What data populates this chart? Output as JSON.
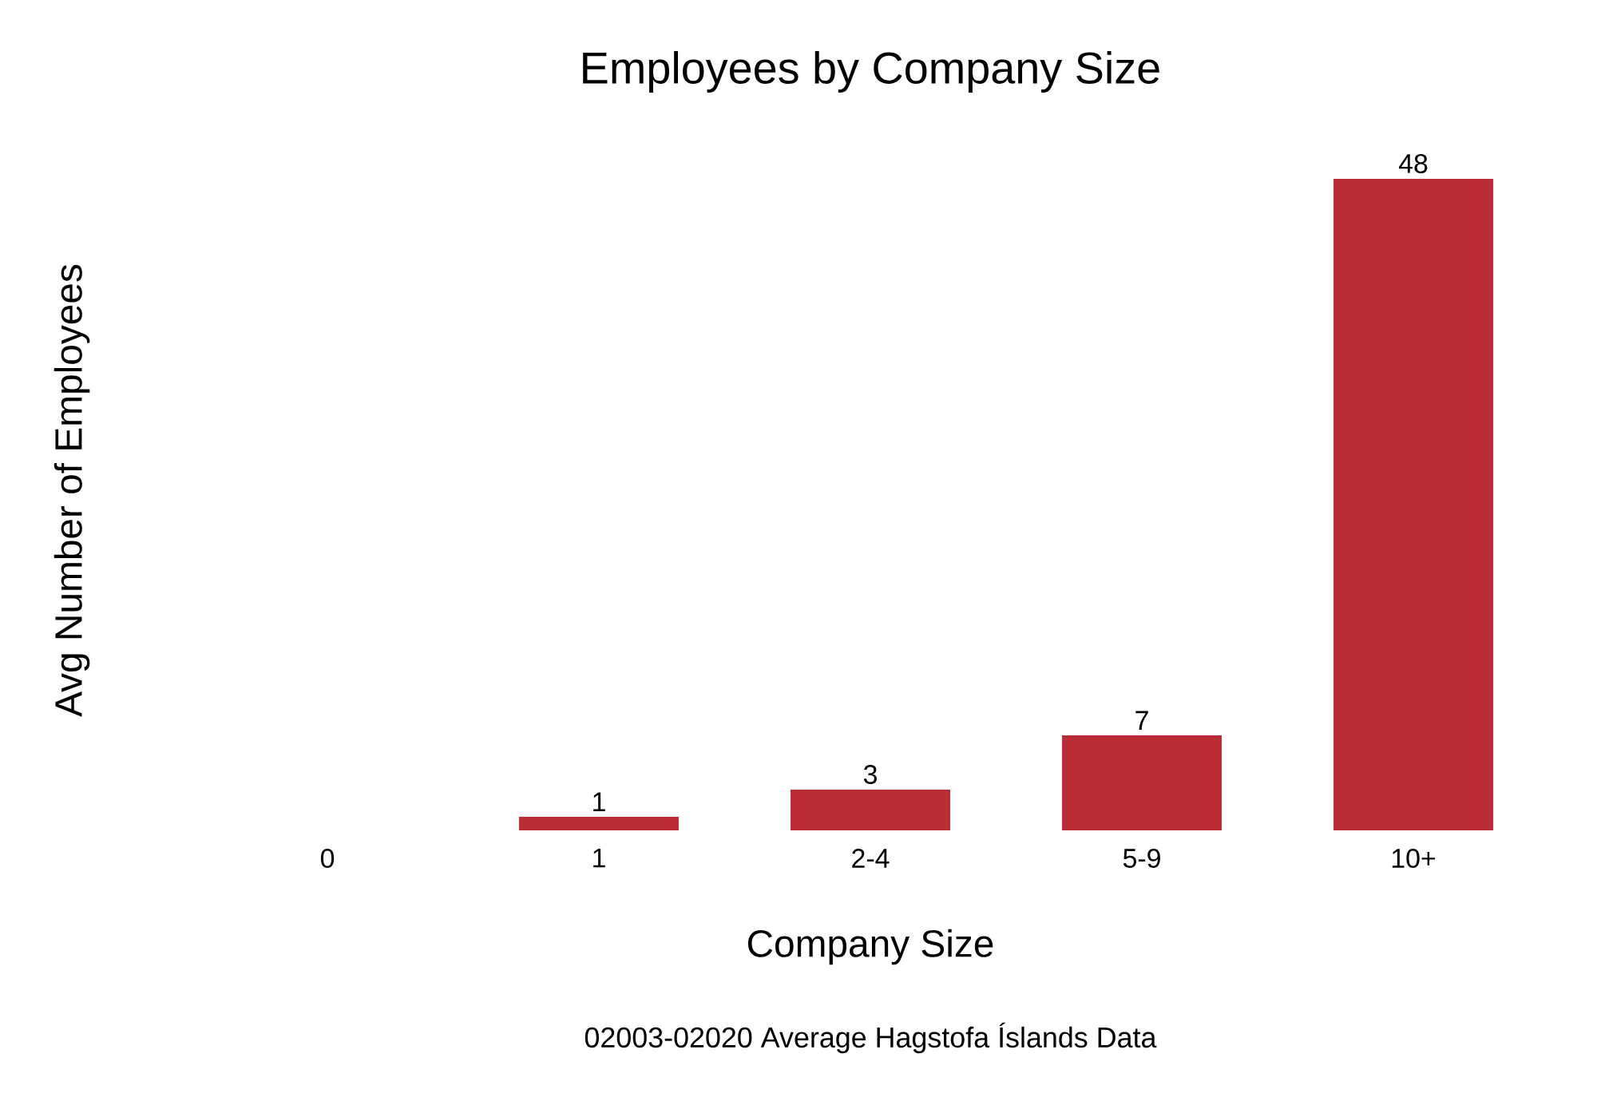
{
  "chart_data": {
    "type": "bar",
    "title": "Employees by Company Size",
    "xlabel": "Company Size",
    "ylabel": "Avg Number of Employees",
    "categories": [
      "0",
      "1",
      "2-4",
      "5-9",
      "10+"
    ],
    "values": [
      null,
      1,
      3,
      7,
      48
    ],
    "color": "#bb2d35",
    "data_labels": true,
    "annotations": [
      "02003-02020 Average Hagstofa Íslands Data"
    ]
  }
}
